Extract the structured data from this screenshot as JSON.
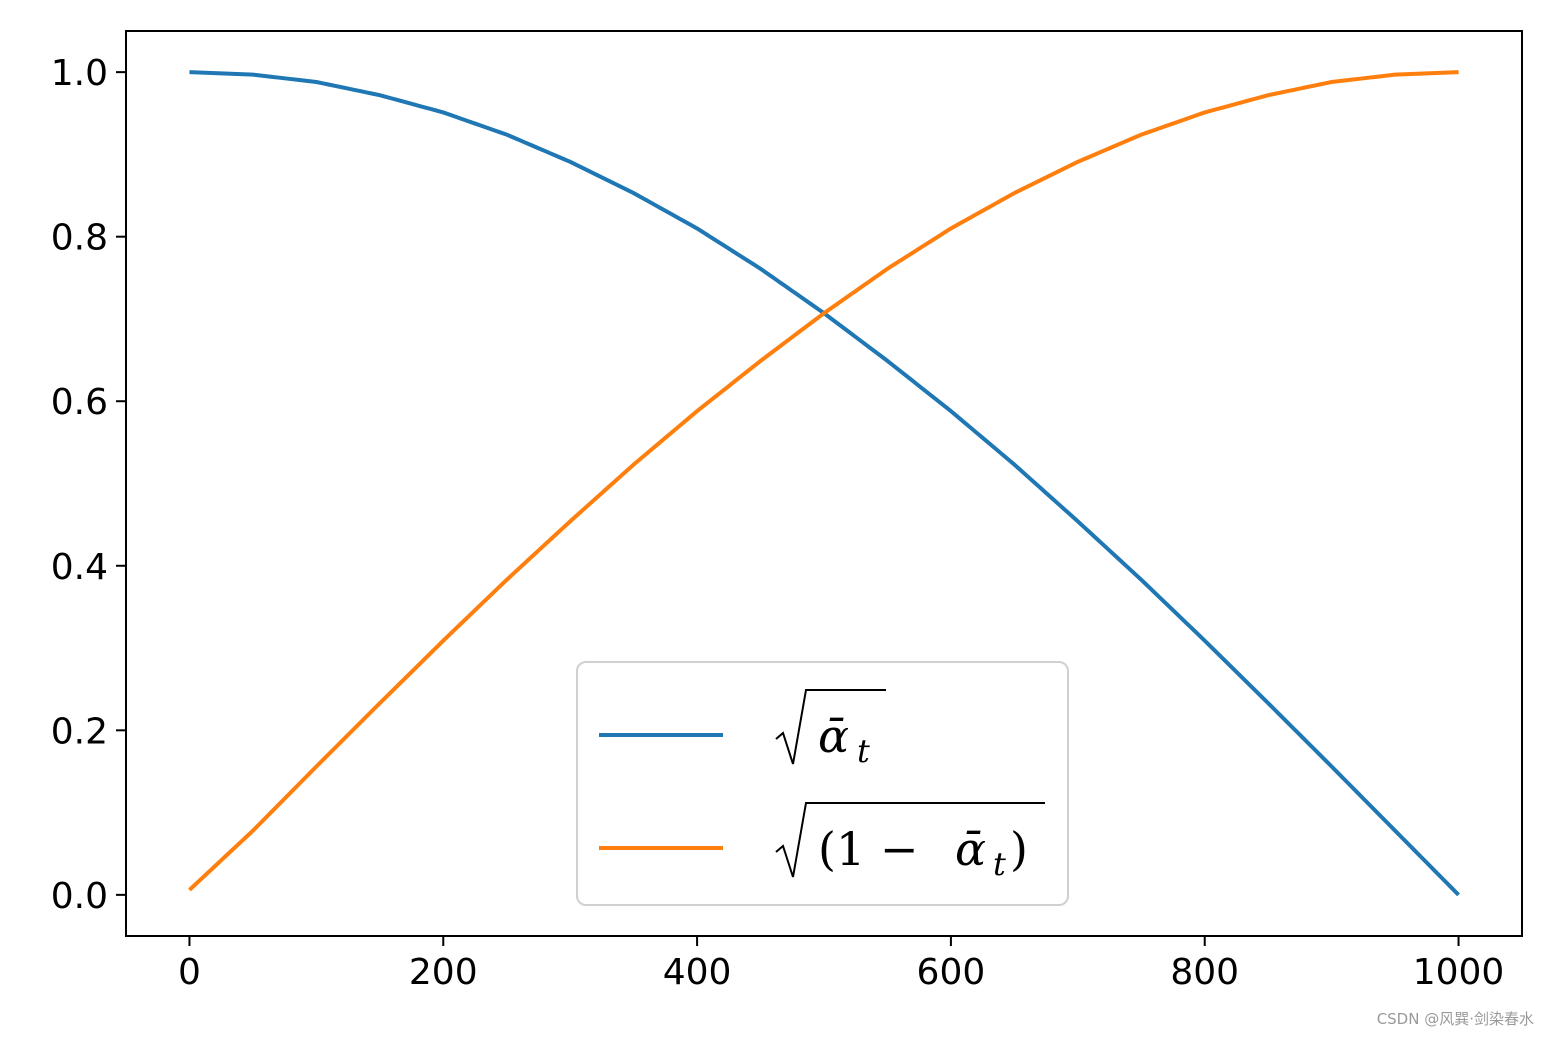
{
  "chart_data": {
    "type": "line",
    "title": "",
    "xlabel": "",
    "ylabel": "",
    "xlim": [
      -50,
      1050
    ],
    "ylim": [
      -0.05,
      1.05
    ],
    "x_ticks": [
      0,
      200,
      400,
      600,
      800,
      1000
    ],
    "y_ticks": [
      0.0,
      0.2,
      0.4,
      0.6,
      0.8,
      1.0
    ],
    "x_tick_labels": [
      "0",
      "200",
      "400",
      "600",
      "800",
      "1000"
    ],
    "y_tick_labels": [
      "0.0",
      "0.2",
      "0.4",
      "0.6",
      "0.8",
      "1.0"
    ],
    "grid": false,
    "legend_position": "lower center",
    "x": [
      0,
      50,
      100,
      150,
      200,
      250,
      300,
      350,
      400,
      450,
      500,
      550,
      600,
      650,
      700,
      750,
      800,
      850,
      900,
      950,
      1000
    ],
    "series": [
      {
        "name": "√ᾱ_t",
        "color": "#1f77b4",
        "values": [
          1.0,
          0.997,
          0.988,
          0.972,
          0.951,
          0.924,
          0.891,
          0.853,
          0.81,
          0.761,
          0.707,
          0.649,
          0.588,
          0.523,
          0.454,
          0.383,
          0.309,
          0.233,
          0.156,
          0.078,
          0.0
        ]
      },
      {
        "name": "√(1 − ᾱ_t)",
        "color": "#ff7f0e",
        "values": [
          0.006,
          0.078,
          0.156,
          0.233,
          0.309,
          0.383,
          0.454,
          0.523,
          0.588,
          0.649,
          0.707,
          0.761,
          0.81,
          0.853,
          0.891,
          0.924,
          0.951,
          0.972,
          0.988,
          0.997,
          1.0
        ]
      }
    ]
  },
  "watermark": "CSDN @风巽·剑染春水"
}
